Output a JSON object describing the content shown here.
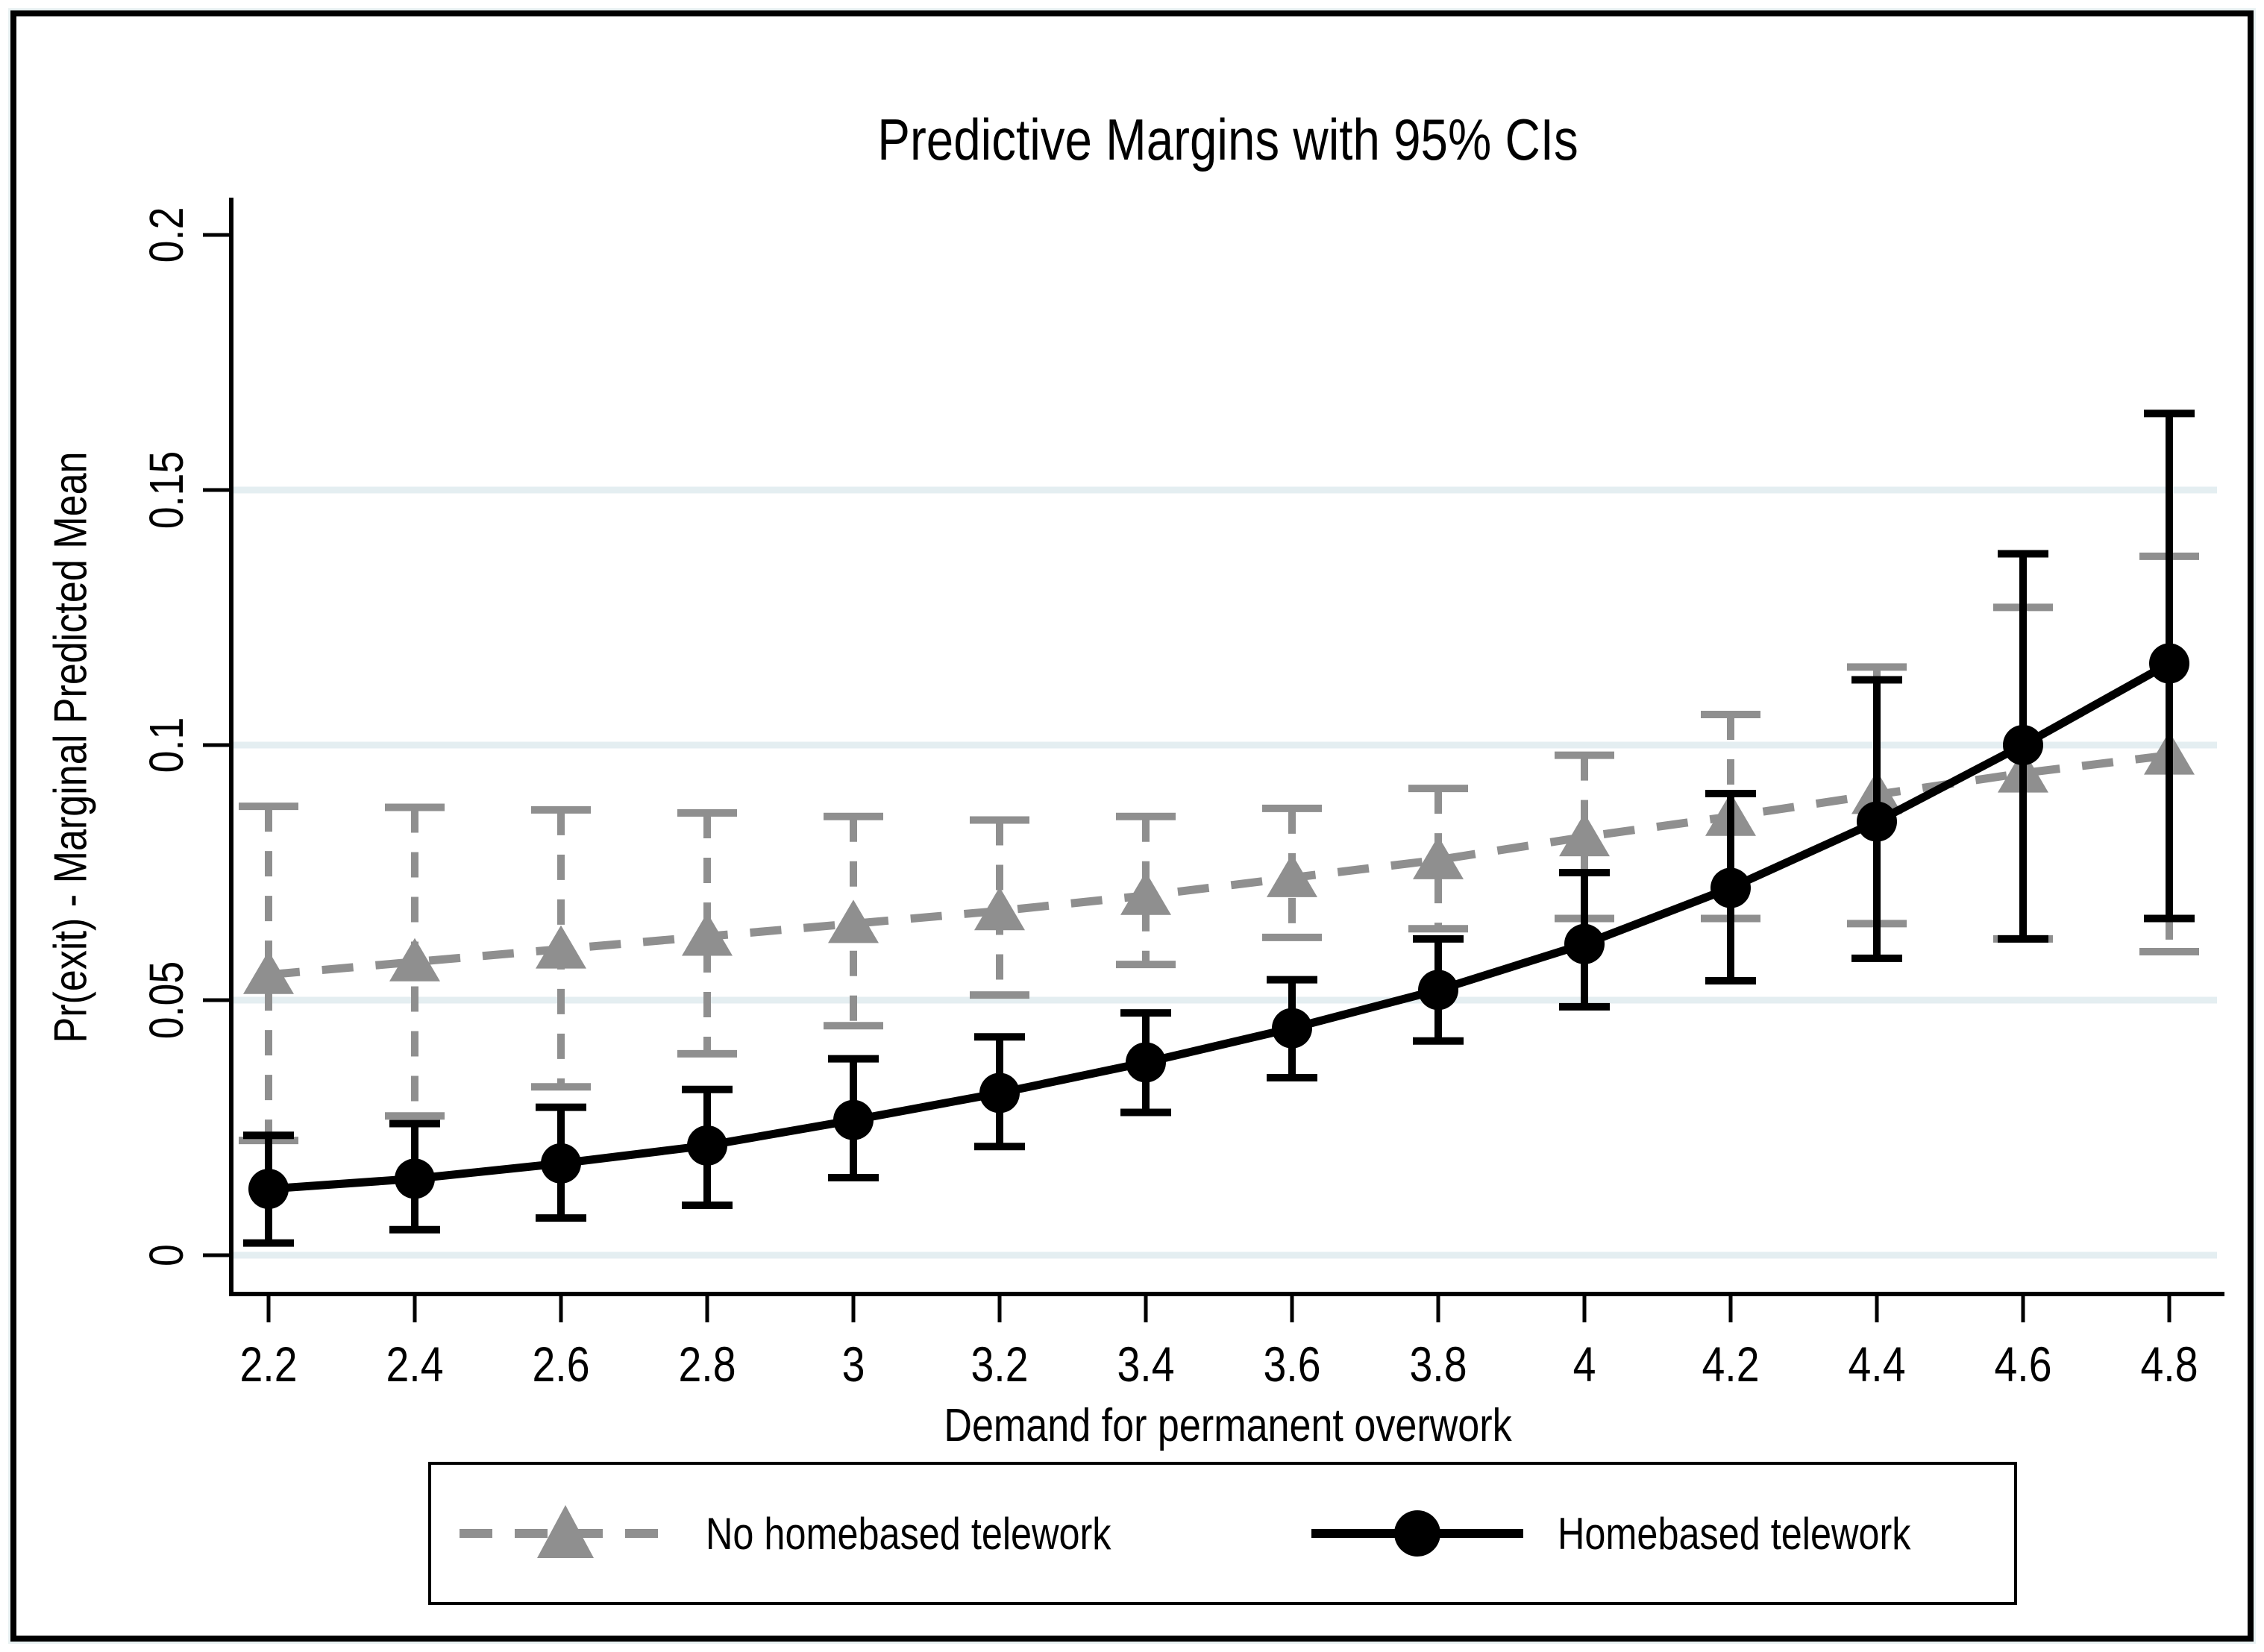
{
  "chart_data": {
    "type": "line",
    "title": "Predictive Margins with 95% CIs",
    "xlabel": "Demand for permanent overwork",
    "ylabel": "Pr(exit) - Marginal Predicted Mean",
    "x": [
      2.2,
      2.4,
      2.6,
      2.8,
      3,
      3.2,
      3.4,
      3.6,
      3.8,
      4,
      4.2,
      4.4,
      4.6,
      4.8
    ],
    "x_tick_labels": [
      "2.2",
      "2.4",
      "2.6",
      "2.8",
      "3",
      "3.2",
      "3.4",
      "3.6",
      "3.8",
      "4",
      "4.2",
      "4.4",
      "4.6",
      "4.8"
    ],
    "y_ticks": [
      0,
      0.05,
      0.1,
      0.15,
      0.2
    ],
    "y_tick_labels": [
      "0",
      "0.05",
      "0.1",
      "0.15",
      "0.2"
    ],
    "grid_values": [
      0,
      0.05,
      0.1,
      0.15
    ],
    "gridline_color": "#e4eef1",
    "axis_color": "#000000",
    "xlim": [
      2.15,
      4.87
    ],
    "ylim": [
      -0.008,
      0.208
    ],
    "grid": true,
    "legend_position": "bottom",
    "error_bars": "95% CI",
    "series": [
      {
        "name": "No homebased telework",
        "color": "#8f8f8f",
        "line_style": "dashed",
        "marker": "triangle",
        "values": [
          0.055,
          0.0575,
          0.06,
          0.0625,
          0.065,
          0.0675,
          0.0705,
          0.074,
          0.0775,
          0.082,
          0.086,
          0.0903,
          0.0945,
          0.098
        ],
        "ci_low": [
          0.0225,
          0.0273,
          0.033,
          0.0395,
          0.045,
          0.051,
          0.057,
          0.0623,
          0.064,
          0.066,
          0.066,
          0.065,
          0.062,
          0.0595
        ],
        "ci_high": [
          0.088,
          0.0878,
          0.0873,
          0.0867,
          0.086,
          0.0853,
          0.086,
          0.0876,
          0.0915,
          0.098,
          0.106,
          0.1153,
          0.127,
          0.137
        ]
      },
      {
        "name": "Homebased telework",
        "color": "#000000",
        "line_style": "solid",
        "marker": "circle",
        "values": [
          0.013,
          0.015,
          0.018,
          0.0215,
          0.0265,
          0.0318,
          0.0378,
          0.0445,
          0.052,
          0.061,
          0.072,
          0.085,
          0.1,
          0.116
        ],
        "ci_low": [
          0.0024,
          0.005,
          0.0073,
          0.0098,
          0.0152,
          0.0213,
          0.028,
          0.0348,
          0.042,
          0.0487,
          0.0538,
          0.0582,
          0.062,
          0.066
        ],
        "ci_high": [
          0.0235,
          0.0258,
          0.029,
          0.0325,
          0.0385,
          0.0428,
          0.0475,
          0.054,
          0.062,
          0.075,
          0.0905,
          0.1128,
          0.1375,
          0.165
        ]
      }
    ]
  }
}
